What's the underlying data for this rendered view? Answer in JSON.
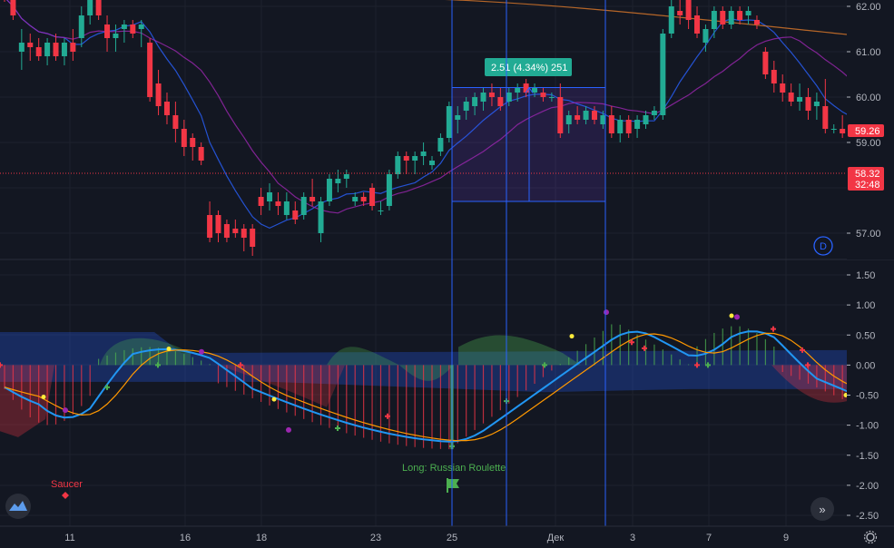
{
  "chart_data": {
    "type": "candlestick",
    "price_axis": {
      "ticks": [
        "62.00",
        "61.00",
        "60.00",
        "59.00",
        "57.00"
      ],
      "tick_values": [
        62,
        61,
        60,
        59,
        57
      ]
    },
    "price_tags": [
      {
        "label": "59.26",
        "value": 59.26,
        "color": "#f23645"
      },
      {
        "label": "58.32",
        "sub": "32:48",
        "value": 58.32,
        "color": "#f23645"
      }
    ],
    "measure": {
      "label": "2.51 (4.34%) 251",
      "from_price": 57.7,
      "to_price": 60.21
    },
    "badge": "D",
    "osc_axis": {
      "ticks": [
        "1.50",
        "1.00",
        "0.50",
        "0.00",
        "-0.50",
        "-1.00",
        "-1.50",
        "-2.00",
        "-2.50"
      ],
      "tick_values": [
        1.5,
        1,
        0.5,
        0,
        -0.5,
        -1,
        -1.5,
        -2,
        -2.5
      ]
    },
    "time_axis": {
      "labels": [
        "11",
        "16",
        "18",
        "23",
        "25",
        "Дек",
        "3",
        "7",
        "9"
      ]
    },
    "annotations": {
      "saucer": "Saucer",
      "long": "Long: Russian Roulette"
    },
    "candles": [
      [
        62.4,
        62.7,
        62.1,
        62.2
      ],
      [
        62.2,
        62.4,
        61.7,
        61.8
      ],
      [
        61.0,
        61.5,
        60.6,
        61.2
      ],
      [
        61.2,
        61.4,
        60.8,
        61.1
      ],
      [
        61.1,
        61.3,
        60.8,
        60.9
      ],
      [
        60.9,
        61.3,
        60.7,
        61.2
      ],
      [
        61.2,
        61.4,
        60.8,
        60.9
      ],
      [
        60.9,
        61.3,
        60.7,
        61.2
      ],
      [
        61.2,
        61.5,
        60.8,
        61.0
      ],
      [
        61.3,
        62.0,
        61.1,
        61.8
      ],
      [
        61.8,
        62.5,
        61.6,
        62.4
      ],
      [
        62.3,
        62.6,
        61.7,
        61.8
      ],
      [
        61.6,
        61.8,
        61.0,
        61.3
      ],
      [
        61.3,
        61.6,
        61.0,
        61.4
      ],
      [
        61.5,
        61.7,
        61.2,
        61.6
      ],
      [
        61.6,
        61.7,
        61.3,
        61.4
      ],
      [
        61.5,
        61.7,
        61.1,
        61.6
      ],
      [
        61.2,
        61.3,
        59.9,
        60.0
      ],
      [
        60.3,
        60.6,
        59.6,
        59.8
      ],
      [
        59.9,
        60.1,
        59.4,
        59.6
      ],
      [
        59.6,
        59.9,
        59.0,
        59.3
      ],
      [
        59.3,
        59.5,
        58.7,
        58.9
      ],
      [
        59.1,
        59.2,
        58.6,
        58.9
      ],
      [
        58.9,
        59.0,
        58.5,
        58.6
      ],
      [
        57.4,
        57.7,
        56.8,
        56.9
      ],
      [
        57.4,
        57.5,
        56.8,
        57.0
      ],
      [
        57.2,
        57.3,
        56.8,
        56.9
      ],
      [
        57.1,
        57.3,
        56.9,
        57.0
      ],
      [
        57.1,
        57.2,
        56.6,
        56.9
      ],
      [
        57.1,
        57.2,
        56.5,
        56.7
      ],
      [
        57.8,
        58.0,
        57.4,
        57.6
      ],
      [
        57.7,
        58.1,
        57.5,
        57.9
      ],
      [
        57.7,
        57.9,
        57.4,
        57.6
      ],
      [
        57.4,
        57.9,
        57.3,
        57.7
      ],
      [
        57.5,
        57.7,
        57.2,
        57.3
      ],
      [
        57.4,
        57.9,
        57.3,
        57.8
      ],
      [
        57.8,
        58.2,
        57.6,
        57.7
      ],
      [
        57.0,
        57.8,
        56.8,
        57.7
      ],
      [
        57.7,
        58.3,
        57.6,
        58.2
      ],
      [
        58.1,
        58.4,
        57.9,
        58.2
      ],
      [
        58.2,
        58.4,
        58.0,
        58.3
      ],
      [
        57.7,
        57.9,
        57.6,
        57.8
      ],
      [
        57.8,
        57.9,
        57.6,
        57.7
      ],
      [
        58.0,
        58.1,
        57.5,
        57.6
      ],
      [
        57.5,
        57.7,
        57.4,
        57.5
      ],
      [
        57.6,
        58.4,
        57.5,
        58.3
      ],
      [
        58.3,
        58.8,
        58.2,
        58.7
      ],
      [
        58.7,
        58.8,
        58.3,
        58.6
      ],
      [
        58.6,
        58.8,
        58.3,
        58.7
      ],
      [
        58.7,
        59.0,
        58.5,
        58.8
      ],
      [
        58.5,
        58.7,
        58.4,
        58.6
      ],
      [
        58.8,
        59.2,
        58.7,
        59.1
      ],
      [
        59.1,
        59.9,
        59.0,
        59.8
      ],
      [
        59.5,
        59.8,
        59.2,
        59.6
      ],
      [
        59.7,
        60.0,
        59.5,
        59.9
      ],
      [
        59.8,
        60.1,
        59.6,
        60.0
      ],
      [
        59.9,
        60.2,
        59.7,
        60.1
      ],
      [
        60.1,
        60.3,
        59.8,
        60.0
      ],
      [
        60.0,
        60.2,
        59.7,
        59.8
      ],
      [
        59.9,
        60.2,
        59.8,
        60.1
      ],
      [
        60.1,
        60.3,
        59.9,
        60.2
      ],
      [
        60.3,
        60.4,
        60.0,
        60.1
      ],
      [
        60.1,
        60.3,
        60.0,
        60.2
      ],
      [
        60.1,
        60.2,
        59.9,
        60.0
      ],
      [
        60.0,
        60.1,
        59.9,
        60.0
      ],
      [
        60.0,
        60.3,
        59.1,
        59.2
      ],
      [
        59.4,
        59.7,
        59.2,
        59.6
      ],
      [
        59.6,
        59.8,
        59.4,
        59.5
      ],
      [
        59.5,
        59.8,
        59.4,
        59.7
      ],
      [
        59.7,
        59.8,
        59.4,
        59.5
      ],
      [
        59.4,
        59.7,
        59.3,
        59.6
      ],
      [
        59.6,
        59.8,
        59.1,
        59.2
      ],
      [
        59.2,
        59.6,
        59.0,
        59.5
      ],
      [
        59.5,
        59.6,
        59.1,
        59.2
      ],
      [
        59.3,
        59.6,
        59.1,
        59.5
      ],
      [
        59.4,
        59.7,
        59.3,
        59.6
      ],
      [
        59.6,
        59.8,
        59.5,
        59.7
      ],
      [
        59.6,
        61.5,
        59.5,
        61.4
      ],
      [
        61.4,
        62.2,
        61.3,
        62.0
      ],
      [
        61.9,
        62.3,
        61.6,
        61.8
      ],
      [
        62.2,
        62.5,
        61.5,
        61.7
      ],
      [
        61.8,
        62.0,
        61.3,
        61.4
      ],
      [
        61.2,
        61.6,
        61.0,
        61.5
      ],
      [
        61.5,
        62.0,
        61.3,
        61.9
      ],
      [
        61.9,
        62.0,
        61.5,
        61.6
      ],
      [
        61.6,
        62.0,
        61.5,
        61.9
      ],
      [
        61.9,
        62.0,
        61.6,
        61.7
      ],
      [
        61.8,
        62.0,
        61.6,
        61.9
      ],
      [
        61.7,
        61.8,
        61.5,
        61.6
      ],
      [
        61.0,
        61.1,
        60.4,
        60.5
      ],
      [
        60.6,
        60.8,
        60.1,
        60.3
      ],
      [
        60.3,
        60.5,
        59.9,
        60.1
      ],
      [
        60.1,
        60.3,
        59.8,
        59.9
      ],
      [
        59.9,
        60.3,
        59.7,
        60.0
      ],
      [
        60.0,
        60.2,
        59.5,
        59.7
      ],
      [
        59.8,
        60.1,
        59.5,
        59.9
      ],
      [
        59.8,
        60.4,
        59.2,
        59.3
      ],
      [
        59.3,
        59.4,
        59.2,
        59.3
      ],
      [
        59.3,
        59.6,
        59.1,
        59.2
      ],
      [
        59.3,
        59.4,
        59.2,
        59.26
      ]
    ]
  }
}
